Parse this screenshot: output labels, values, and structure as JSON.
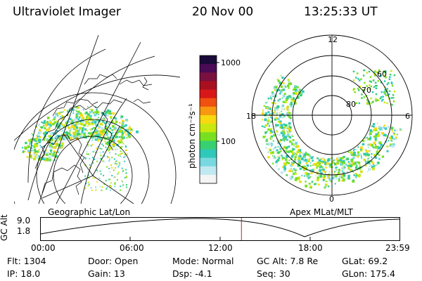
{
  "header": {
    "title": "Ultraviolet Imager",
    "date": "20 Nov 00",
    "time": "13:25:33 UT"
  },
  "left_panel": {
    "label": "Geographic Lat/Lon"
  },
  "right_panel": {
    "label": "Apex MLat/MLT",
    "mlt_labels": {
      "top": "12",
      "left": "18",
      "right": "6",
      "bottom": "0"
    },
    "lat_labels": [
      "60",
      "70",
      "80"
    ]
  },
  "colorbar": {
    "unit_label": "photon cm⁻²s⁻¹",
    "tick_labels": [
      "1000",
      "100"
    ],
    "colors": [
      "#1a0a3a",
      "#4a0a55",
      "#7a1040",
      "#a81020",
      "#d81818",
      "#f05010",
      "#f89810",
      "#f8d810",
      "#c8e810",
      "#78e020",
      "#38d070",
      "#30c8b8",
      "#78d8e0",
      "#c0e8f0",
      "#f4f4f4"
    ]
  },
  "timeline": {
    "axis_label": "GC Alt",
    "alt_max": "9.0",
    "alt_min": "1.8",
    "time_ticks": [
      "00:00",
      "06:00",
      "12:00",
      "18:00",
      "23:59"
    ],
    "current_time_fraction": 0.5594,
    "marker_color": "#cc2020"
  },
  "info": {
    "flt": "Flt: 1304",
    "ip": "IP: 18.0",
    "door": "Door: Open",
    "gain": "Gain: 13",
    "mode": "Mode: Normal",
    "dsp": "Dsp:    -4.1",
    "gc_alt": "GC Alt: 7.8 Re",
    "seq": "Seq: 30",
    "glat": "GLat:  69.2",
    "glon": "GLon: 175.4"
  }
}
